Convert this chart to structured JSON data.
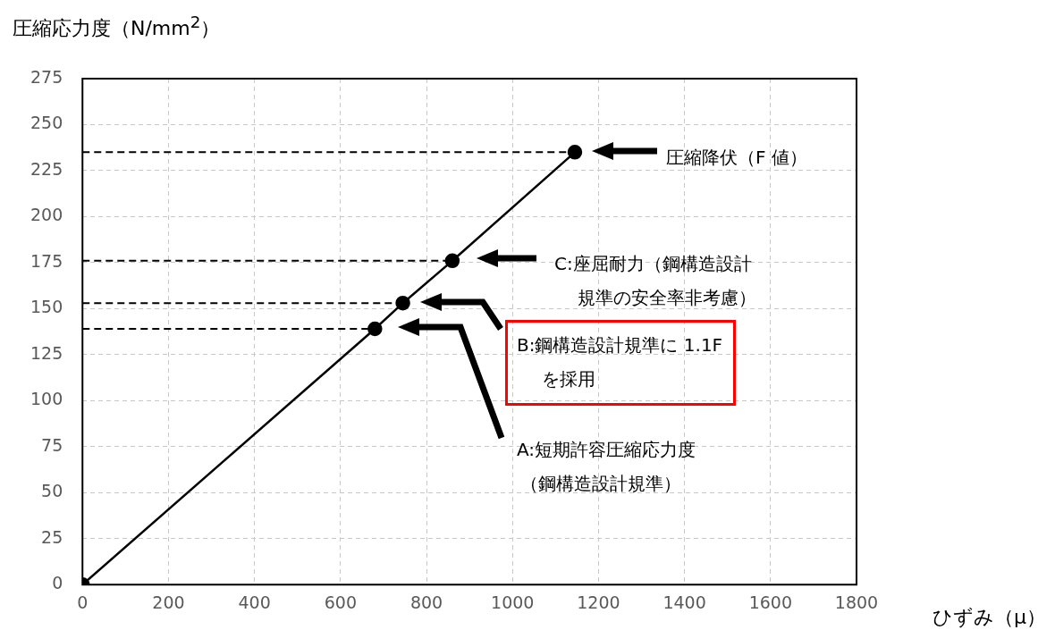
{
  "chart_data": {
    "type": "line",
    "xlabel": "ひずみ（μ）",
    "ylabel": "圧縮応力度（N/mm$^{2}$）",
    "x": [
      0,
      680,
      745,
      860,
      1145
    ],
    "series": [
      {
        "color": "#000000",
        "values": [
          0,
          139,
          153,
          176,
          235
        ]
      }
    ],
    "xlim": [
      0,
      1800
    ],
    "xticks": [
      0,
      200,
      400,
      600,
      800,
      1000,
      1200,
      1400,
      1600,
      1800
    ],
    "ylim": [
      0,
      275
    ],
    "yticks": [
      0,
      25,
      50,
      75,
      100,
      125,
      150,
      175,
      200,
      225,
      250,
      275
    ],
    "grid": true,
    "legend": false,
    "marker": "circle",
    "line_style": "solid",
    "ref_lines": [
      {
        "axis": "y",
        "value": 235,
        "line_style": "dashed",
        "color": "#000000"
      },
      {
        "axis": "y",
        "value": 176,
        "line_style": "dashed",
        "color": "#000000"
      },
      {
        "axis": "y",
        "value": 153,
        "line_style": "dashed",
        "color": "#000000"
      },
      {
        "axis": "y",
        "value": 139,
        "line_style": "dashed",
        "color": "#000000"
      }
    ],
    "annotations": [
      "圧縮降伏（F 値）",
      "C:座屈耐力（鋼構造設計規準の安全率非考慮）",
      "B:鋼構造設計規準に 1.1Fを採用",
      "A:短期許容圧縮応力度（鋼構造設計規準）"
    ]
  }
}
